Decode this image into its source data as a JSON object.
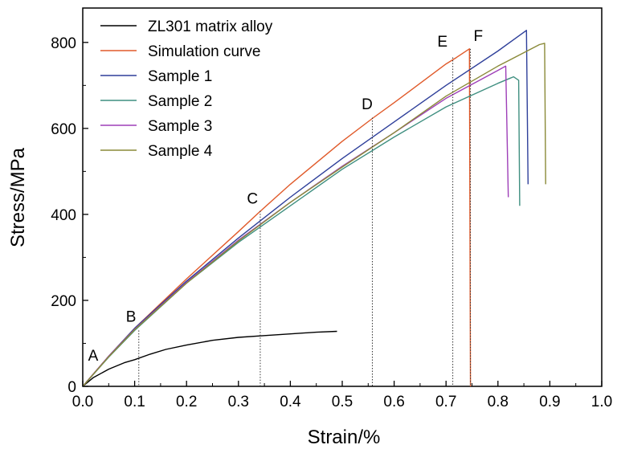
{
  "chart_data": {
    "type": "line",
    "xlabel": "Strain/%",
    "ylabel": "Stress/MPa",
    "xlim": [
      0,
      1.0
    ],
    "ylim": [
      0,
      880
    ],
    "xticks": [
      0.0,
      0.1,
      0.2,
      0.3,
      0.4,
      0.5,
      0.6,
      0.7,
      0.8,
      0.9,
      1.0
    ],
    "xtick_labels": [
      "0.0",
      "0.1",
      "0.2",
      "0.3",
      "0.4",
      "0.5",
      "0.6",
      "0.7",
      "0.8",
      "0.9",
      "1.0"
    ],
    "yticks": [
      0,
      200,
      400,
      600,
      800
    ],
    "ytick_labels": [
      "0",
      "200",
      "400",
      "600",
      "800"
    ],
    "grid": false,
    "legend_position": "top-left",
    "series": [
      {
        "name": "ZL301 matrix alloy",
        "color": "#000000",
        "x": [
          0,
          0.02,
          0.05,
          0.08,
          0.1,
          0.13,
          0.16,
          0.2,
          0.25,
          0.3,
          0.35,
          0.4,
          0.45,
          0.49
        ],
        "y": [
          0,
          20,
          40,
          55,
          62,
          75,
          86,
          96,
          107,
          114,
          118,
          122,
          126,
          128
        ]
      },
      {
        "name": "Simulation curve",
        "color": "#e05a2a",
        "x": [
          0,
          0.05,
          0.1,
          0.2,
          0.3,
          0.34,
          0.4,
          0.5,
          0.56,
          0.6,
          0.7,
          0.72,
          0.745,
          0.747
        ],
        "y": [
          0,
          70,
          135,
          250,
          360,
          405,
          470,
          570,
          625,
          660,
          750,
          765,
          785,
          0
        ]
      },
      {
        "name": "Sample 1",
        "color": "#2e3f9a",
        "x": [
          0,
          0.05,
          0.1,
          0.2,
          0.3,
          0.4,
          0.5,
          0.6,
          0.7,
          0.8,
          0.855,
          0.858
        ],
        "y": [
          0,
          70,
          135,
          245,
          345,
          440,
          530,
          615,
          700,
          780,
          828,
          470
        ]
      },
      {
        "name": "Sample 2",
        "color": "#3f8f80",
        "x": [
          0,
          0.05,
          0.1,
          0.2,
          0.3,
          0.4,
          0.5,
          0.6,
          0.7,
          0.8,
          0.83,
          0.84,
          0.842
        ],
        "y": [
          0,
          68,
          130,
          240,
          335,
          420,
          505,
          580,
          650,
          705,
          720,
          712,
          420
        ]
      },
      {
        "name": "Sample 3",
        "color": "#9e3fb8",
        "x": [
          0,
          0.05,
          0.1,
          0.2,
          0.3,
          0.4,
          0.5,
          0.6,
          0.7,
          0.8,
          0.815,
          0.82
        ],
        "y": [
          0,
          70,
          133,
          242,
          340,
          428,
          512,
          590,
          670,
          735,
          745,
          440
        ]
      },
      {
        "name": "Sample 4",
        "color": "#8a8a38",
        "x": [
          0,
          0.05,
          0.1,
          0.2,
          0.3,
          0.4,
          0.5,
          0.6,
          0.7,
          0.8,
          0.88,
          0.89,
          0.892
        ],
        "y": [
          0,
          69,
          132,
          240,
          338,
          428,
          510,
          590,
          675,
          745,
          795,
          798,
          470
        ]
      }
    ],
    "annotations": [
      {
        "label": "A",
        "x": 0.02,
        "y": 42,
        "tx": 0.02,
        "ty": 60
      },
      {
        "label": "B",
        "x": 0.108,
        "y": 130,
        "tx": 0.093,
        "ty": 150
      },
      {
        "label": "C",
        "x": 0.342,
        "y": 408,
        "tx": 0.327,
        "ty": 425
      },
      {
        "label": "D",
        "x": 0.558,
        "y": 625,
        "tx": 0.548,
        "ty": 645
      },
      {
        "label": "E",
        "x": 0.713,
        "y": 765,
        "tx": 0.693,
        "ty": 790
      },
      {
        "label": "F",
        "x": 0.747,
        "y": 785,
        "tx": 0.762,
        "ty": 803
      }
    ]
  }
}
